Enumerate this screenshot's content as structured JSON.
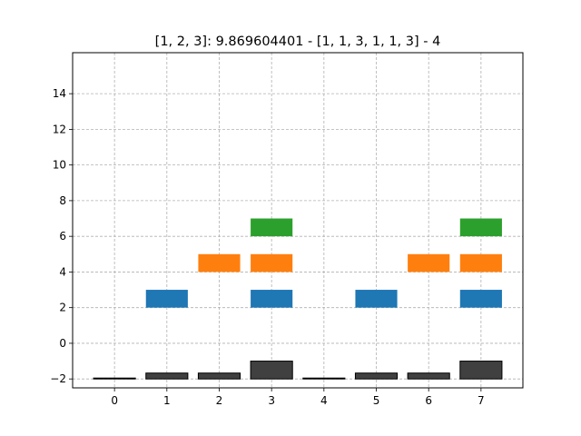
{
  "chart_data": {
    "type": "bar",
    "title": "[1, 2, 3]: 9.869604401 - [1, 1, 3, 1, 1, 3] - 4",
    "xlabel": "",
    "ylabel": "",
    "xlim": [
      -0.8,
      7.8
    ],
    "ylim": [
      -2.5,
      16.3
    ],
    "x_ticks": [
      0,
      1,
      2,
      3,
      4,
      5,
      6,
      7
    ],
    "y_ticks": [
      -2,
      0,
      2,
      4,
      6,
      8,
      10,
      12,
      14
    ],
    "grid": true,
    "grid_style": "dashed",
    "bar_width": 0.8,
    "series": [
      {
        "color": "#404040",
        "edge_color": "#000000",
        "bars": [
          {
            "x": 0,
            "bottom": -2,
            "top": -1.95
          },
          {
            "x": 1,
            "bottom": -2,
            "top": -1.67
          },
          {
            "x": 2,
            "bottom": -2,
            "top": -1.67
          },
          {
            "x": 3,
            "bottom": -2,
            "top": -1.0
          },
          {
            "x": 4,
            "bottom": -2,
            "top": -1.95
          },
          {
            "x": 5,
            "bottom": -2,
            "top": -1.67
          },
          {
            "x": 6,
            "bottom": -2,
            "top": -1.67
          },
          {
            "x": 7,
            "bottom": -2,
            "top": -1.0
          }
        ]
      },
      {
        "color": "#1f77b4",
        "bars": [
          {
            "x": 1,
            "bottom": 2,
            "top": 3
          },
          {
            "x": 3,
            "bottom": 2,
            "top": 3
          },
          {
            "x": 5,
            "bottom": 2,
            "top": 3
          },
          {
            "x": 7,
            "bottom": 2,
            "top": 3
          }
        ]
      },
      {
        "color": "#ff7f0e",
        "bars": [
          {
            "x": 2,
            "bottom": 4,
            "top": 5
          },
          {
            "x": 3,
            "bottom": 4,
            "top": 5
          },
          {
            "x": 6,
            "bottom": 4,
            "top": 5
          },
          {
            "x": 7,
            "bottom": 4,
            "top": 5
          }
        ]
      },
      {
        "color": "#2ca02c",
        "bars": [
          {
            "x": 3,
            "bottom": 6,
            "top": 7
          },
          {
            "x": 7,
            "bottom": 6,
            "top": 7
          }
        ]
      }
    ]
  }
}
